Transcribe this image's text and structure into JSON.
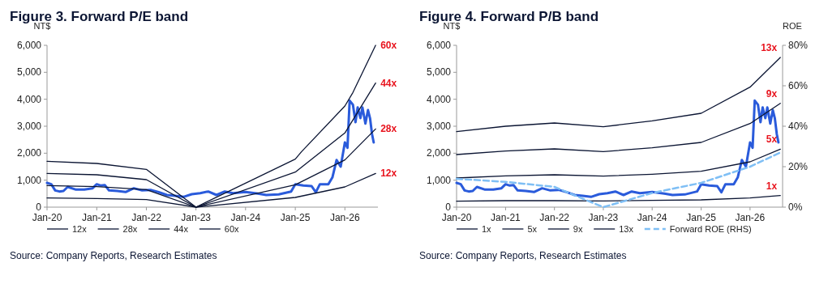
{
  "chart_data": [
    {
      "type": "line",
      "title": "Figure 3. Forward P/E band",
      "ylabel": "NT$",
      "legend": "bottom",
      "grid": false,
      "xlim": [
        "2020-01-01",
        "2026-09-01"
      ],
      "ylim": [
        0,
        6000
      ],
      "xticks": [
        {
          "value": "2020-01-01",
          "label": "Jan-20"
        },
        {
          "value": "2021-01-01",
          "label": "Jan-21"
        },
        {
          "value": "2022-01-01",
          "label": "Jan-22"
        },
        {
          "value": "2023-01-01",
          "label": "Jan-23"
        },
        {
          "value": "2024-01-01",
          "label": "Jan-24"
        },
        {
          "value": "2025-01-01",
          "label": "Jan-25"
        },
        {
          "value": "2026-01-01",
          "label": "Jan-26"
        }
      ],
      "yticks": [
        {
          "value": 0,
          "label": "0"
        },
        {
          "value": 1000,
          "label": "1,000"
        },
        {
          "value": 2000,
          "label": "2,000"
        },
        {
          "value": 3000,
          "label": "3,000"
        },
        {
          "value": 4000,
          "label": "4,000"
        },
        {
          "value": 5000,
          "label": "5,000"
        },
        {
          "value": 6000,
          "label": "6,000"
        }
      ],
      "series": [
        {
          "color": "#2a5bdb",
          "x": [
            "2020-01-01",
            "2020-02-01",
            "2020-03-01",
            "2020-04-01",
            "2020-05-01",
            "2020-06-01",
            "2020-08-01",
            "2020-10-01",
            "2020-12-01",
            "2021-01-01",
            "2021-02-01",
            "2021-03-01",
            "2021-04-01",
            "2021-06-01",
            "2021-08-01",
            "2021-10-01",
            "2021-12-01",
            "2022-02-01",
            "2022-04-01",
            "2022-06-01",
            "2022-08-01",
            "2022-10-01",
            "2022-12-01",
            "2023-02-01",
            "2023-04-01",
            "2023-06-01",
            "2023-08-01",
            "2023-10-01",
            "2024-01-01",
            "2024-04-01",
            "2024-06-01",
            "2024-09-01",
            "2024-12-01",
            "2025-01-01",
            "2025-03-01",
            "2025-05-01",
            "2025-06-01",
            "2025-07-01",
            "2025-09-01",
            "2025-10-01",
            "2025-11-01",
            "2025-12-01",
            "2026-01-01",
            "2026-01-20",
            "2026-02-05",
            "2026-03-01",
            "2026-03-20",
            "2026-04-05",
            "2026-04-25",
            "2026-05-10",
            "2026-06-01",
            "2026-06-20",
            "2026-07-05",
            "2026-07-20",
            "2026-08-01"
          ],
          "values": [
            900,
            850,
            620,
            580,
            600,
            750,
            650,
            650,
            700,
            850,
            800,
            820,
            620,
            600,
            560,
            700,
            620,
            640,
            560,
            450,
            420,
            380,
            480,
            520,
            580,
            450,
            580,
            520,
            560,
            500,
            450,
            470,
            580,
            850,
            800,
            780,
            550,
            850,
            850,
            1100,
            1750,
            1500,
            2400,
            2200,
            3950,
            3800,
            3150,
            3700,
            3300,
            3700,
            3100,
            3600,
            3300,
            2700,
            2400
          ]
        },
        {
          "name": "12x",
          "color": "#0b1533",
          "x": [
            "2020-01-01",
            "2021-01-01",
            "2022-01-01",
            "2023-01-01",
            "2025-01-01",
            "2026-01-01",
            "2026-08-15"
          ],
          "values": [
            340,
            320,
            280,
            0,
            360,
            750,
            1250
          ]
        },
        {
          "name": "28x",
          "color": "#0b1533",
          "x": [
            "2020-01-01",
            "2021-01-01",
            "2022-01-01",
            "2023-01-01",
            "2025-01-01",
            "2026-01-01",
            "2026-08-15"
          ],
          "values": [
            800,
            760,
            650,
            0,
            830,
            1750,
            2900
          ]
        },
        {
          "name": "44x",
          "color": "#0b1533",
          "x": [
            "2020-01-01",
            "2021-01-01",
            "2022-01-01",
            "2023-01-01",
            "2025-01-01",
            "2026-01-01",
            "2026-08-15"
          ],
          "values": [
            1250,
            1200,
            1020,
            0,
            1300,
            2750,
            4600
          ]
        },
        {
          "name": "60x",
          "color": "#0b1533",
          "x": [
            "2020-01-01",
            "2021-01-01",
            "2022-01-01",
            "2023-01-01",
            "2025-01-01",
            "2025-02-15",
            "2026-01-01",
            "2026-03-01",
            "2026-08-15"
          ],
          "values": [
            1700,
            1620,
            1400,
            0,
            1780,
            2050,
            3750,
            4250,
            6000
          ]
        }
      ],
      "annotations": [
        "Source: Company Reports, Research Estimates"
      ]
    },
    {
      "type": "line",
      "title": "Figure 4. Forward P/B band",
      "ylabel": "NT$",
      "y2label": "ROE",
      "legend": "bottom",
      "grid": false,
      "xlim": [
        "2020-01-01",
        "2026-09-01"
      ],
      "ylim": [
        0,
        6000
      ],
      "y2lim": [
        0,
        80
      ],
      "xticks": [
        {
          "value": "2020-01-01",
          "label": "Jan-20"
        },
        {
          "value": "2021-01-01",
          "label": "Jan-21"
        },
        {
          "value": "2022-01-01",
          "label": "Jan-22"
        },
        {
          "value": "2023-01-01",
          "label": "Jan-23"
        },
        {
          "value": "2024-01-01",
          "label": "Jan-24"
        },
        {
          "value": "2025-01-01",
          "label": "Jan-25"
        },
        {
          "value": "2026-01-01",
          "label": "Jan-26"
        }
      ],
      "yticks": [
        {
          "value": 0,
          "label": "0"
        },
        {
          "value": 1000,
          "label": "1,000"
        },
        {
          "value": 2000,
          "label": "2,000"
        },
        {
          "value": 3000,
          "label": "3,000"
        },
        {
          "value": 4000,
          "label": "4,000"
        },
        {
          "value": 5000,
          "label": "5,000"
        },
        {
          "value": 6000,
          "label": "6,000"
        }
      ],
      "y2ticks": [
        {
          "value": 0,
          "label": "0%"
        },
        {
          "value": 20,
          "label": "20%"
        },
        {
          "value": 40,
          "label": "40%"
        },
        {
          "value": 60,
          "label": "60%"
        },
        {
          "value": 80,
          "label": "80%"
        }
      ],
      "series": [
        {
          "color": "#2a5bdb",
          "x": [
            "2020-01-01",
            "2020-02-01",
            "2020-03-01",
            "2020-04-01",
            "2020-05-01",
            "2020-06-01",
            "2020-08-01",
            "2020-10-01",
            "2020-12-01",
            "2021-01-01",
            "2021-02-01",
            "2021-03-01",
            "2021-04-01",
            "2021-06-01",
            "2021-08-01",
            "2021-10-01",
            "2021-12-01",
            "2022-02-01",
            "2022-04-01",
            "2022-06-01",
            "2022-08-01",
            "2022-10-01",
            "2022-12-01",
            "2023-02-01",
            "2023-04-01",
            "2023-06-01",
            "2023-08-01",
            "2023-10-01",
            "2024-01-01",
            "2024-04-01",
            "2024-06-01",
            "2024-09-01",
            "2024-12-01",
            "2025-01-01",
            "2025-03-01",
            "2025-05-01",
            "2025-06-01",
            "2025-07-01",
            "2025-09-01",
            "2025-10-01",
            "2025-11-01",
            "2025-12-01",
            "2026-01-01",
            "2026-01-20",
            "2026-02-05",
            "2026-03-01",
            "2026-03-20",
            "2026-04-05",
            "2026-04-25",
            "2026-05-10",
            "2026-06-01",
            "2026-06-20",
            "2026-07-05",
            "2026-07-20",
            "2026-08-01"
          ],
          "values": [
            900,
            850,
            620,
            580,
            600,
            750,
            650,
            650,
            700,
            850,
            800,
            820,
            620,
            600,
            560,
            700,
            620,
            640,
            560,
            450,
            420,
            380,
            480,
            520,
            580,
            450,
            580,
            520,
            560,
            500,
            450,
            470,
            580,
            850,
            800,
            780,
            550,
            850,
            850,
            1100,
            1750,
            1500,
            2400,
            2200,
            3950,
            3800,
            3150,
            3700,
            3300,
            3700,
            3100,
            3600,
            3300,
            2700,
            2400
          ]
        },
        {
          "name": "1x",
          "color": "#0b1533",
          "x": [
            "2020-01-01",
            "2021-01-01",
            "2022-01-01",
            "2023-01-01",
            "2024-01-01",
            "2025-01-01",
            "2026-01-01",
            "2026-08-15"
          ],
          "values": [
            220,
            240,
            240,
            230,
            250,
            270,
            340,
            430
          ]
        },
        {
          "name": "5x",
          "color": "#0b1533",
          "x": [
            "2020-01-01",
            "2021-01-01",
            "2022-01-01",
            "2023-01-01",
            "2024-01-01",
            "2025-01-01",
            "2026-01-01",
            "2026-08-15"
          ],
          "values": [
            1080,
            1160,
            1200,
            1150,
            1220,
            1330,
            1680,
            2150
          ]
        },
        {
          "name": "9x",
          "color": "#0b1533",
          "x": [
            "2020-01-01",
            "2021-01-01",
            "2022-01-01",
            "2023-01-01",
            "2024-01-01",
            "2025-01-01",
            "2026-01-01",
            "2026-08-15"
          ],
          "values": [
            1950,
            2080,
            2160,
            2060,
            2200,
            2400,
            3100,
            3850
          ]
        },
        {
          "name": "13x",
          "color": "#0b1533",
          "x": [
            "2020-01-01",
            "2021-01-01",
            "2022-01-01",
            "2023-01-01",
            "2024-01-01",
            "2025-01-01",
            "2026-01-01",
            "2026-08-15"
          ],
          "values": [
            2800,
            3000,
            3120,
            2980,
            3200,
            3480,
            4450,
            5550
          ]
        },
        {
          "name": "Forward ROE (RHS)",
          "color": "#7fbff5",
          "axis": "y2",
          "line_style": "dashed",
          "x": [
            "2020-01-01",
            "2021-01-01",
            "2022-01-01",
            "2023-01-01",
            "2024-01-01",
            "2025-01-01",
            "2026-01-01",
            "2026-08-15"
          ],
          "values": [
            14,
            12.5,
            10,
            0,
            7,
            12,
            20,
            27
          ]
        }
      ],
      "annotations": [
        "Source: Company Reports, Research Estimates"
      ]
    }
  ]
}
